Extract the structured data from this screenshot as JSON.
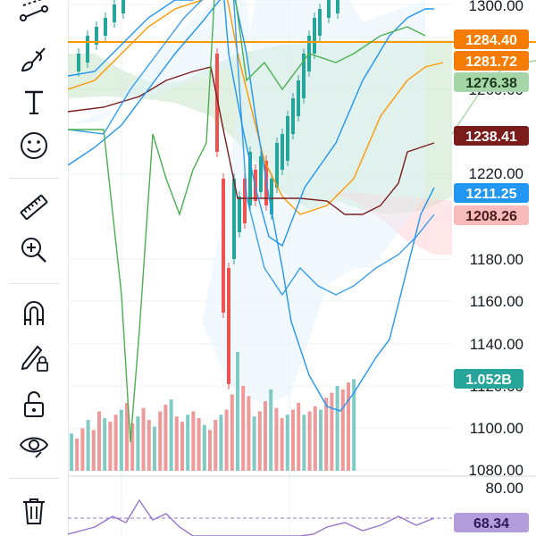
{
  "toolbar": {
    "tools": [
      {
        "name": "trend-lines-icon"
      },
      {
        "name": "brush-icon"
      },
      {
        "name": "text-icon"
      },
      {
        "name": "emoji-icon"
      },
      {
        "name": "ruler-icon"
      },
      {
        "name": "zoom-in-icon"
      },
      {
        "name": "magnet-icon"
      },
      {
        "name": "lock-drawings-icon"
      },
      {
        "name": "unlock-icon"
      },
      {
        "name": "eye-icon"
      },
      {
        "name": "trash-icon"
      }
    ]
  },
  "colors": {
    "up": "#26a69a",
    "down": "#ef5350",
    "blue": "#2196f3",
    "orange": "#ff9800",
    "dark_red": "#7b1c1c",
    "green": "#4caf50",
    "purple": "#9575cd"
  },
  "axis": {
    "ticks": [
      "1300.00",
      "1260.00",
      "1220.00",
      "1180.00",
      "1160.00",
      "1140.00",
      "1120.00",
      "1100.00",
      "1080.00"
    ],
    "osc_ticks": [
      "80.00"
    ]
  },
  "price_tags": [
    {
      "label": "1284.40",
      "bg": "#f57c00",
      "fg": "#ffffff"
    },
    {
      "label": "1281.72",
      "bg": "#f57c00",
      "fg": "#ffffff"
    },
    {
      "label": "1276.38",
      "bg": "#a5d6a7",
      "fg": "#1b3a1b"
    },
    {
      "label": "1238.41",
      "bg": "#7b1c1c",
      "fg": "#ffffff"
    },
    {
      "label": "1211.25",
      "bg": "#2196f3",
      "fg": "#ffffff"
    },
    {
      "label": "1208.26",
      "bg": "#f8bbbb",
      "fg": "#4a1a1a"
    },
    {
      "label": "1.052B",
      "bg": "#26a69a",
      "fg": "#ffffff"
    },
    {
      "label": "68.34",
      "bg": "#b39ddb",
      "fg": "#311b57"
    }
  ]
}
